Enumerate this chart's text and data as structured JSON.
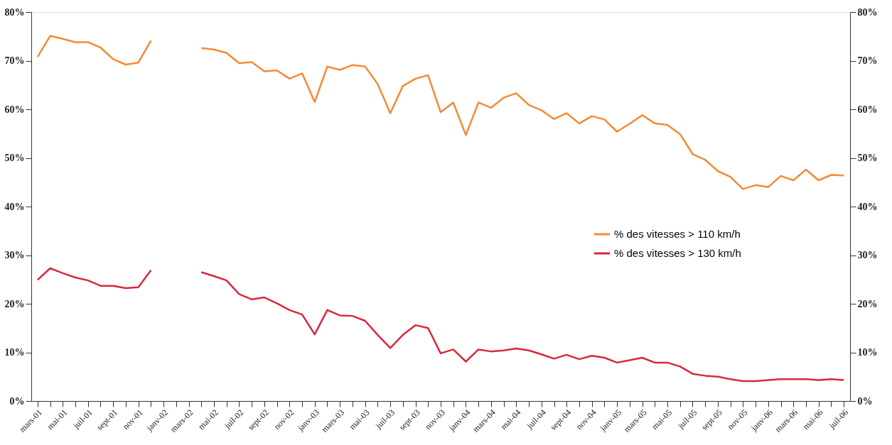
{
  "chart_data": {
    "type": "line",
    "categories": [
      "mars-01",
      null,
      "mai-01",
      null,
      "juil-01",
      null,
      "sept-01",
      null,
      "nov-01",
      null,
      "janv-02",
      null,
      "mars-02",
      null,
      "mai-02",
      null,
      "juil-02",
      null,
      "sept-02",
      null,
      "nov-02",
      null,
      "janv-03",
      null,
      "mars-03",
      null,
      "mai-03",
      null,
      "juil-03",
      null,
      "sept-03",
      null,
      "nov-03",
      null,
      "janv-04",
      null,
      "mars-04",
      null,
      "mai-04",
      null,
      "juil-04",
      null,
      "sept-04",
      null,
      "nov-04",
      null,
      "janv-05",
      null,
      "mars-05",
      null,
      "mai-05",
      null,
      "juil-05",
      null,
      "sept-05",
      null,
      "nov-05",
      null,
      "janv-06",
      null,
      "mars-06",
      null,
      "mai-06",
      null,
      "juil-06"
    ],
    "series": [
      {
        "name": "% des vitesses > 110 km/h",
        "color": "#f58a34",
        "values": [
          70.8,
          75.1,
          74.5,
          73.8,
          73.8,
          72.7,
          70.3,
          69.2,
          69.6,
          74.1,
          null,
          null,
          null,
          72.6,
          72.3,
          71.6,
          69.5,
          69.7,
          67.8,
          68.0,
          66.3,
          67.4,
          61.5,
          68.8,
          68.1,
          69.1,
          68.8,
          65.2,
          59.2,
          64.8,
          66.3,
          67.0,
          59.4,
          61.4,
          54.7,
          61.4,
          60.3,
          62.4,
          63.3,
          60.9,
          59.8,
          58.0,
          59.2,
          57.1,
          58.6,
          57.9,
          55.4,
          57.0,
          58.8,
          57.1,
          56.8,
          54.9,
          50.8,
          49.6,
          47.3,
          46.1,
          43.6,
          44.4,
          44.0,
          46.3,
          45.4,
          47.6,
          45.4,
          46.5,
          46.4
        ]
      },
      {
        "name": "% des vitesses > 130 km/h",
        "color": "#d8283a",
        "values": [
          24.9,
          27.3,
          26.3,
          25.4,
          24.8,
          23.7,
          23.7,
          23.2,
          23.4,
          26.9,
          null,
          null,
          null,
          26.5,
          25.7,
          24.8,
          22.0,
          20.9,
          21.3,
          20.1,
          18.7,
          17.8,
          13.7,
          18.7,
          17.6,
          17.5,
          16.5,
          13.6,
          10.9,
          13.6,
          15.6,
          15.0,
          9.8,
          10.6,
          8.1,
          10.6,
          10.2,
          10.4,
          10.8,
          10.4,
          9.6,
          8.7,
          9.5,
          8.6,
          9.3,
          8.9,
          7.9,
          8.4,
          8.9,
          7.9,
          7.9,
          7.1,
          5.6,
          5.2,
          5.0,
          4.5,
          4.1,
          4.1,
          4.3,
          4.5,
          4.5,
          4.5,
          4.3,
          4.5,
          4.3
        ]
      }
    ],
    "ylim": [
      0,
      80
    ],
    "yticks": [
      {
        "value": 0,
        "label": "0%"
      },
      {
        "value": 10,
        "label": "10%"
      },
      {
        "value": 20,
        "label": "20%"
      },
      {
        "value": 30,
        "label": "30%"
      },
      {
        "value": 40,
        "label": "40%"
      },
      {
        "value": 50,
        "label": "50%"
      },
      {
        "value": 60,
        "label": "60%"
      },
      {
        "value": 70,
        "label": "70%"
      },
      {
        "value": 80,
        "label": "80%"
      }
    ],
    "y2lim": [
      0,
      80
    ],
    "y2ticks": [
      {
        "value": 0,
        "label": "0%"
      },
      {
        "value": 10,
        "label": "10%"
      },
      {
        "value": 20,
        "label": "20%"
      },
      {
        "value": 30,
        "label": "30%"
      },
      {
        "value": 40,
        "label": "40%"
      },
      {
        "value": 50,
        "label": "50%"
      },
      {
        "value": 60,
        "label": "60%"
      },
      {
        "value": 70,
        "label": "70%"
      },
      {
        "value": 80,
        "label": "80%"
      }
    ],
    "grid": false,
    "legend": "right",
    "marker": "none",
    "line_style": "solid"
  }
}
